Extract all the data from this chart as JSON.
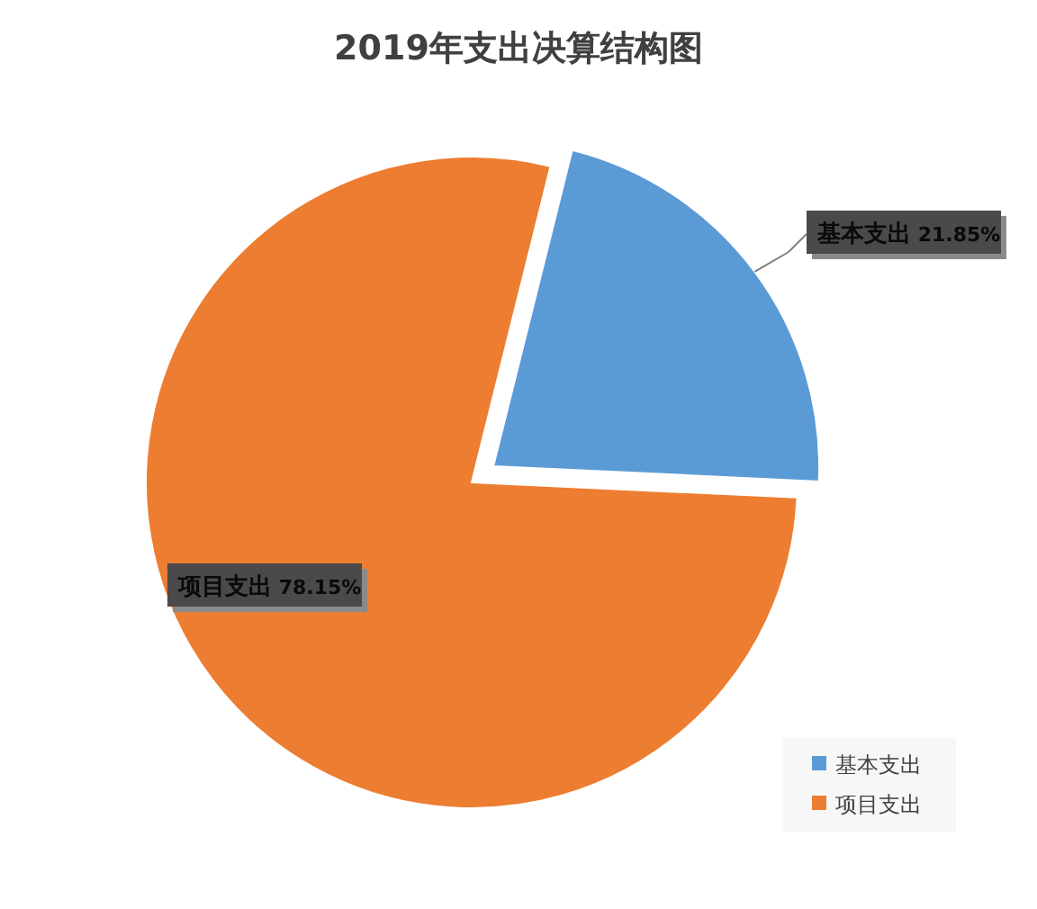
{
  "chart_data": {
    "type": "pie",
    "title": "2019年支出决算结构图",
    "categories": [
      "基本支出",
      "项目支出"
    ],
    "values": [
      21.85,
      78.15
    ],
    "colors": [
      "#5b9bd5",
      "#ed7d31"
    ],
    "value_labels": [
      "21.85%",
      "78.15%"
    ],
    "legend": "bottom right"
  }
}
